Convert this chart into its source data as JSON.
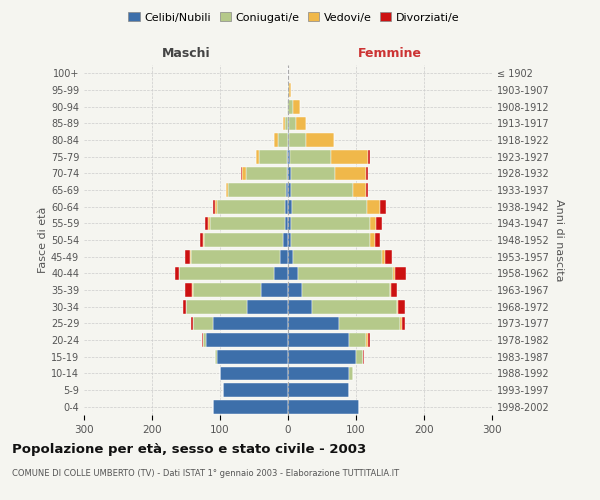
{
  "age_groups": [
    "0-4",
    "5-9",
    "10-14",
    "15-19",
    "20-24",
    "25-29",
    "30-34",
    "35-39",
    "40-44",
    "45-49",
    "50-54",
    "55-59",
    "60-64",
    "65-69",
    "70-74",
    "75-79",
    "80-84",
    "85-89",
    "90-94",
    "95-99",
    "100+"
  ],
  "birth_years": [
    "1998-2002",
    "1993-1997",
    "1988-1992",
    "1983-1987",
    "1978-1982",
    "1973-1977",
    "1968-1972",
    "1963-1967",
    "1958-1962",
    "1953-1957",
    "1948-1952",
    "1943-1947",
    "1938-1942",
    "1933-1937",
    "1928-1932",
    "1923-1927",
    "1918-1922",
    "1913-1917",
    "1908-1912",
    "1903-1907",
    "≤ 1902"
  ],
  "male": {
    "celibe": [
      110,
      95,
      100,
      105,
      120,
      110,
      60,
      40,
      20,
      12,
      8,
      5,
      4,
      3,
      2,
      2,
      0,
      0,
      0,
      0,
      0
    ],
    "coniugato": [
      0,
      0,
      0,
      2,
      5,
      30,
      90,
      100,
      140,
      130,
      115,
      110,
      100,
      85,
      60,
      40,
      15,
      5,
      2,
      0,
      0
    ],
    "vedovo": [
      0,
      0,
      0,
      0,
      0,
      0,
      0,
      1,
      1,
      2,
      2,
      2,
      3,
      3,
      5,
      5,
      5,
      2,
      0,
      0,
      0
    ],
    "divorziato": [
      0,
      0,
      0,
      0,
      2,
      2,
      5,
      10,
      5,
      8,
      4,
      5,
      3,
      0,
      2,
      0,
      0,
      0,
      0,
      0,
      0
    ]
  },
  "female": {
    "nubile": [
      105,
      90,
      90,
      100,
      90,
      75,
      35,
      20,
      15,
      8,
      5,
      5,
      6,
      5,
      4,
      3,
      2,
      2,
      0,
      0,
      0
    ],
    "coniugata": [
      0,
      0,
      5,
      10,
      25,
      90,
      125,
      130,
      140,
      130,
      115,
      115,
      110,
      90,
      65,
      60,
      25,
      10,
      8,
      2,
      0
    ],
    "vedova": [
      0,
      0,
      0,
      0,
      2,
      2,
      2,
      2,
      3,
      5,
      8,
      10,
      20,
      20,
      45,
      55,
      40,
      15,
      10,
      2,
      0
    ],
    "divorziata": [
      0,
      0,
      0,
      2,
      3,
      5,
      10,
      8,
      15,
      10,
      8,
      8,
      8,
      2,
      3,
      2,
      0,
      0,
      0,
      0,
      0
    ]
  },
  "colors": {
    "celibe": "#3d6faa",
    "coniugato": "#b5c98a",
    "vedovo": "#f0b84a",
    "divorziato": "#cc1111"
  },
  "xlim": 300,
  "title": "Popolazione per età, sesso e stato civile - 2003",
  "subtitle": "COMUNE DI COLLE UMBERTO (TV) - Dati ISTAT 1° gennaio 2003 - Elaborazione TUTTITALIA.IT",
  "ylabel_left": "Fasce di età",
  "ylabel_right": "Anni di nascita",
  "xlabel_left": "Maschi",
  "xlabel_right": "Femmine",
  "bg_color": "#f5f5f0",
  "legend_labels": [
    "Celibi/Nubili",
    "Coniugati/e",
    "Vedovi/e",
    "Divorziati/e"
  ],
  "maschi_color": "#444444",
  "femmine_color": "#cc3333"
}
